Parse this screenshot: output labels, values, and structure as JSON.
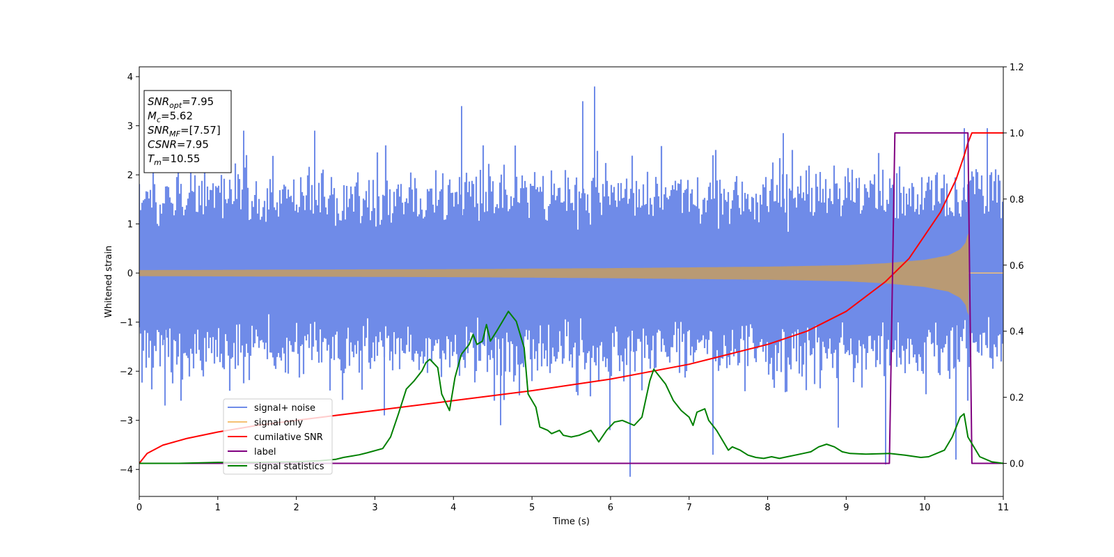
{
  "chart_data": {
    "type": "line",
    "xlabel": "Time (s)",
    "ylabel": "Whitened strain",
    "xlim": [
      0,
      11
    ],
    "ylim": [
      -4.55,
      4.2
    ],
    "y2lim": [
      -0.1,
      1.2
    ],
    "x_ticks": [
      0,
      1,
      2,
      3,
      4,
      5,
      6,
      7,
      8,
      9,
      10,
      11
    ],
    "y_ticks": [
      -4,
      -3,
      -2,
      -1,
      0,
      1,
      2,
      3,
      4
    ],
    "y2_ticks": [
      0.0,
      0.2,
      0.4,
      0.6,
      0.8,
      1.0,
      1.2
    ],
    "x_tick_labels": [
      "0",
      "1",
      "2",
      "3",
      "4",
      "5",
      "6",
      "7",
      "8",
      "9",
      "10",
      "11"
    ],
    "y_tick_labels": [
      "−4",
      "−3",
      "−2",
      "−1",
      "0",
      "1",
      "2",
      "3",
      "4"
    ],
    "y2_tick_labels": [
      "0.0",
      "0.2",
      "0.4",
      "0.6",
      "0.8",
      "1.0",
      "1.2"
    ],
    "info_box": {
      "lines": [
        {
          "sym": "SNR",
          "sub": "opt",
          "value": "=7.95"
        },
        {
          "sym": "M",
          "sub": "c",
          "value": "=5.62"
        },
        {
          "sym": "SNR",
          "sub": "MF",
          "value": "=[7.57]"
        },
        {
          "sym": "CSNR",
          "sub": "",
          "value": "=7.95"
        },
        {
          "sym": "T",
          "sub": "m",
          "value": "=10.55"
        }
      ]
    },
    "legend": {
      "placement": "lower-left",
      "entries": [
        {
          "label": "signal+ noise",
          "color": "#6f8be8"
        },
        {
          "label": "signal only",
          "color": "#f5c173"
        },
        {
          "label": "cumilative SNR",
          "color": "#ff0000"
        },
        {
          "label": "label",
          "color": "#800080"
        },
        {
          "label": "signal statistics",
          "color": "#008000"
        }
      ]
    },
    "series": [
      {
        "name": "signal+ noise",
        "axis": "left",
        "color": "#6f8be8",
        "kind": "noise",
        "x_range": [
          0,
          11
        ],
        "y_min": -4.15,
        "y_max": 3.8,
        "peaks": [
          {
            "x": 1.33,
            "y": 2.9
          },
          {
            "x": 2.23,
            "y": 2.9
          },
          {
            "x": 4.1,
            "y": 3.4
          },
          {
            "x": 5.65,
            "y": 3.5
          },
          {
            "x": 5.8,
            "y": 3.8
          },
          {
            "x": 8.2,
            "y": 2.85
          },
          {
            "x": 10.5,
            "y": 2.95
          },
          {
            "x": 10.8,
            "y": 2.95
          },
          {
            "x": 3.12,
            "y": -2.9
          },
          {
            "x": 4.6,
            "y": -3.1
          },
          {
            "x": 6.25,
            "y": -4.15
          },
          {
            "x": 8.9,
            "y": -3.15
          },
          {
            "x": 9.5,
            "y": -3.9
          },
          {
            "x": 10.4,
            "y": -3.8
          },
          {
            "x": 0.33,
            "y": -2.7
          },
          {
            "x": 7.3,
            "y": -3.7
          },
          {
            "x": 5.99,
            "y": -3.2
          }
        ]
      },
      {
        "name": "signal only",
        "axis": "left",
        "color": "#f5c173",
        "kind": "chirp",
        "amplitude": [
          [
            0,
            0.06
          ],
          [
            2,
            0.07
          ],
          [
            4,
            0.08
          ],
          [
            6,
            0.1
          ],
          [
            8,
            0.13
          ],
          [
            9,
            0.16
          ],
          [
            9.5,
            0.2
          ],
          [
            10,
            0.27
          ],
          [
            10.3,
            0.36
          ],
          [
            10.45,
            0.48
          ],
          [
            10.52,
            0.62
          ],
          [
            10.55,
            0.82
          ]
        ],
        "end_x": 10.56
      },
      {
        "name": "cumilative SNR",
        "axis": "right",
        "color": "#ff0000",
        "x": [
          0,
          0.1,
          0.3,
          0.6,
          1,
          1.5,
          2,
          3,
          4,
          5,
          6,
          7,
          8,
          8.5,
          9,
          9.5,
          9.8,
          10,
          10.2,
          10.4,
          10.5,
          10.55,
          10.6,
          11
        ],
        "y": [
          0.0,
          0.03,
          0.055,
          0.075,
          0.095,
          0.115,
          0.13,
          0.16,
          0.19,
          0.22,
          0.255,
          0.3,
          0.36,
          0.4,
          0.46,
          0.55,
          0.62,
          0.69,
          0.76,
          0.86,
          0.93,
          0.97,
          1.0,
          1.0
        ]
      },
      {
        "name": "label",
        "axis": "right",
        "color": "#800080",
        "x": [
          0,
          9.55,
          9.62,
          10.55,
          10.6,
          11
        ],
        "y": [
          0.0,
          0.0,
          1.0,
          1.0,
          0.0,
          0.0
        ]
      },
      {
        "name": "signal statistics",
        "axis": "right",
        "color": "#008000",
        "x": [
          0,
          0.5,
          1,
          1.5,
          2,
          2.3,
          2.5,
          2.6,
          2.8,
          2.9,
          3.1,
          3.2,
          3.3,
          3.4,
          3.5,
          3.6,
          3.65,
          3.7,
          3.8,
          3.85,
          3.95,
          4.02,
          4.1,
          4.2,
          4.25,
          4.3,
          4.37,
          4.42,
          4.47,
          4.55,
          4.65,
          4.7,
          4.8,
          4.9,
          4.95,
          5.05,
          5.1,
          5.2,
          5.25,
          5.35,
          5.4,
          5.5,
          5.6,
          5.7,
          5.75,
          5.85,
          5.95,
          6.05,
          6.15,
          6.2,
          6.3,
          6.4,
          6.5,
          6.55,
          6.6,
          6.7,
          6.8,
          6.9,
          7.0,
          7.05,
          7.1,
          7.2,
          7.25,
          7.35,
          7.45,
          7.5,
          7.55,
          7.65,
          7.75,
          7.85,
          7.95,
          8.05,
          8.15,
          8.25,
          8.35,
          8.45,
          8.55,
          8.65,
          8.75,
          8.85,
          8.95,
          9.05,
          9.25,
          9.55,
          9.75,
          9.95,
          10.05,
          10.25,
          10.35,
          10.45,
          10.5,
          10.55,
          10.7,
          10.85,
          11
        ],
        "y": [
          0.0,
          0.0,
          0.003,
          0.003,
          0.005,
          0.008,
          0.012,
          0.018,
          0.026,
          0.032,
          0.045,
          0.08,
          0.15,
          0.225,
          0.25,
          0.28,
          0.305,
          0.315,
          0.29,
          0.21,
          0.16,
          0.26,
          0.33,
          0.36,
          0.39,
          0.36,
          0.37,
          0.42,
          0.37,
          0.4,
          0.44,
          0.46,
          0.43,
          0.35,
          0.21,
          0.17,
          0.11,
          0.1,
          0.09,
          0.1,
          0.085,
          0.08,
          0.085,
          0.095,
          0.1,
          0.065,
          0.1,
          0.125,
          0.13,
          0.125,
          0.115,
          0.14,
          0.25,
          0.285,
          0.27,
          0.24,
          0.19,
          0.16,
          0.14,
          0.115,
          0.155,
          0.165,
          0.13,
          0.1,
          0.06,
          0.04,
          0.05,
          0.04,
          0.025,
          0.018,
          0.015,
          0.02,
          0.015,
          0.02,
          0.025,
          0.03,
          0.035,
          0.05,
          0.058,
          0.05,
          0.035,
          0.03,
          0.028,
          0.03,
          0.025,
          0.018,
          0.02,
          0.04,
          0.08,
          0.14,
          0.15,
          0.08,
          0.02,
          0.005,
          0.0
        ]
      }
    ]
  }
}
